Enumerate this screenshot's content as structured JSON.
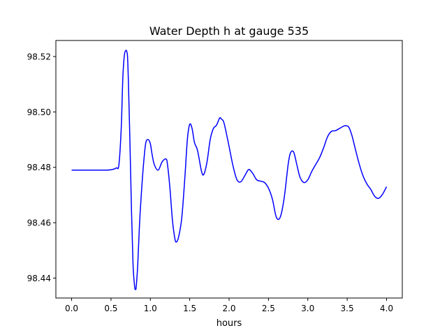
{
  "chart_data": {
    "type": "line",
    "title": "Water Depth h at gauge 535",
    "xlabel": "hours",
    "ylabel": "",
    "xlim": [
      -0.2,
      4.2
    ],
    "ylim": [
      98.4328,
      98.5258
    ],
    "xticks": [
      0.0,
      0.5,
      1.0,
      1.5,
      2.0,
      2.5,
      3.0,
      3.5,
      4.0
    ],
    "xtick_labels": [
      "0.0",
      "0.5",
      "1.0",
      "1.5",
      "2.0",
      "2.5",
      "3.0",
      "3.5",
      "4.0"
    ],
    "yticks": [
      98.44,
      98.46,
      98.48,
      98.5,
      98.52
    ],
    "ytick_labels": [
      "98.44",
      "98.46",
      "98.48",
      "98.50",
      "98.52"
    ],
    "grid": false,
    "series": [
      {
        "color": "#0000ff",
        "x": [
          0.0,
          0.25,
          0.45,
          0.52,
          0.57,
          0.6,
          0.63,
          0.65,
          0.67,
          0.69,
          0.7,
          0.71,
          0.72,
          0.74,
          0.76,
          0.78,
          0.8,
          0.81,
          0.82,
          0.84,
          0.86,
          0.88,
          0.91,
          0.94,
          0.97,
          1.0,
          1.02,
          1.05,
          1.1,
          1.15,
          1.2,
          1.22,
          1.25,
          1.28,
          1.31,
          1.33,
          1.36,
          1.4,
          1.44,
          1.47,
          1.5,
          1.53,
          1.56,
          1.6,
          1.65,
          1.68,
          1.72,
          1.76,
          1.8,
          1.84,
          1.88,
          1.9,
          1.93,
          1.96,
          2.0,
          2.05,
          2.1,
          2.15,
          2.2,
          2.25,
          2.3,
          2.35,
          2.4,
          2.45,
          2.5,
          2.55,
          2.6,
          2.65,
          2.7,
          2.75,
          2.78,
          2.82,
          2.86,
          2.9,
          2.95,
          3.0,
          3.05,
          3.1,
          3.15,
          3.2,
          3.25,
          3.3,
          3.35,
          3.4,
          3.45,
          3.48,
          3.52,
          3.56,
          3.6,
          3.65,
          3.7,
          3.75,
          3.8,
          3.85,
          3.9,
          3.95,
          4.0
        ],
        "y": [
          98.479,
          98.479,
          98.479,
          98.4792,
          98.4798,
          98.4808,
          98.494,
          98.512,
          98.5205,
          98.5222,
          98.5218,
          98.52,
          98.512,
          98.49,
          98.465,
          98.445,
          98.437,
          98.436,
          98.4368,
          98.445,
          98.458,
          98.468,
          98.48,
          98.4885,
          98.49,
          98.4885,
          98.485,
          98.481,
          98.479,
          98.482,
          98.483,
          98.4805,
          98.472,
          98.461,
          98.4545,
          98.453,
          98.455,
          98.462,
          98.477,
          98.49,
          98.4955,
          98.494,
          98.489,
          98.486,
          98.4785,
          98.4775,
          98.482,
          98.49,
          98.494,
          98.4952,
          98.4978,
          98.4975,
          98.4965,
          98.493,
          98.4875,
          98.4805,
          98.4755,
          98.4748,
          98.477,
          98.4792,
          98.4778,
          98.4755,
          98.475,
          98.4745,
          98.4725,
          98.4685,
          98.462,
          98.462,
          98.469,
          98.481,
          98.4852,
          98.4855,
          98.481,
          98.4765,
          98.4745,
          98.4755,
          98.4785,
          98.481,
          98.4835,
          98.487,
          98.491,
          98.493,
          98.4932,
          98.494,
          98.4948,
          98.495,
          98.4945,
          98.4915,
          98.487,
          98.4815,
          98.477,
          98.474,
          98.472,
          98.4695,
          98.4688,
          98.4703,
          98.473
        ]
      }
    ]
  }
}
